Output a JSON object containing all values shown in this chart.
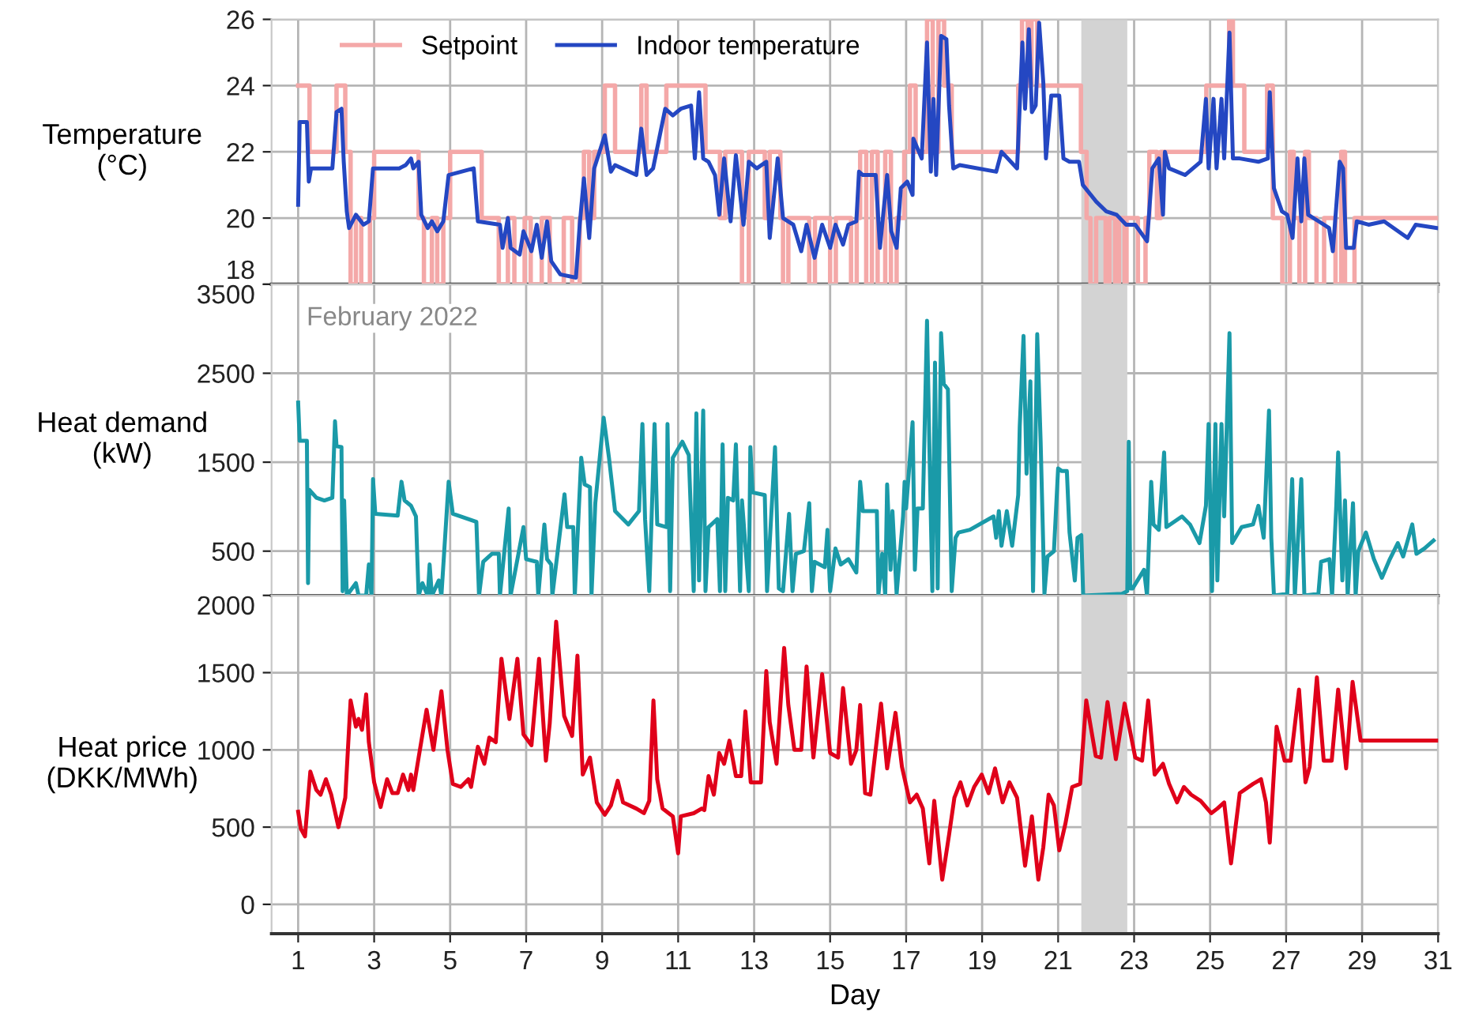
{
  "chart_data": [
    {
      "type": "line",
      "ylabel": "Temperature\n(°C)",
      "xlim": [
        0.3,
        31
      ],
      "xticks": [
        1,
        3,
        5,
        7,
        9,
        11,
        13,
        15,
        17,
        19,
        21,
        23,
        25,
        27,
        29,
        31
      ],
      "ylim": [
        18,
        26
      ],
      "yticks": [
        18,
        20,
        22,
        24,
        26
      ],
      "grid": true,
      "legend": "top left",
      "tick_labels": "y",
      "bands": [
        {
          "axis": "x",
          "from": 21.61,
          "to": 22.82,
          "color": "#d3d3d3"
        }
      ],
      "series": [
        {
          "name": "Setpoint",
          "type": "step",
          "color": "#f4a8a8",
          "x": [
            1.0,
            1.3,
            2.01,
            2.24,
            2.38,
            2.52,
            2.66,
            2.89,
            3.0,
            4.17,
            4.31,
            4.52,
            4.66,
            4.82,
            5.0,
            5.83,
            6.28,
            6.52,
            6.69,
            6.96,
            7.12,
            7.41,
            7.62,
            7.99,
            8.21,
            8.41,
            8.52,
            8.66,
            8.79,
            9.07,
            9.34,
            10.03,
            10.17,
            10.69,
            11.72,
            12.1,
            12.24,
            12.68,
            12.86,
            13.28,
            13.41,
            13.69,
            13.76,
            13.9,
            14.45,
            14.6,
            15.0,
            15.15,
            15.55,
            15.7,
            15.79,
            15.95,
            16.1,
            16.25,
            16.45,
            16.6,
            16.75,
            16.95,
            17.1,
            17.25,
            17.55,
            17.7,
            17.85,
            18.0,
            18.2,
            19.95,
            20.05,
            20.2,
            20.3,
            20.45,
            21.6,
            21.75,
            21.85,
            22.0,
            22.25,
            22.35,
            22.5,
            22.6,
            22.75,
            22.8,
            23.1,
            23.3,
            23.4,
            23.6,
            23.7,
            24.9,
            25.5,
            25.6,
            25.9,
            26.5,
            26.65,
            26.9,
            27.1,
            27.2,
            27.35,
            27.5,
            27.6,
            27.8,
            28.0,
            28.3,
            28.45,
            28.55,
            28.8,
            31.0
          ],
          "values": [
            24,
            22,
            24,
            22,
            18,
            20,
            18,
            20,
            22,
            20,
            18,
            20,
            18,
            20,
            22,
            20,
            18,
            20,
            18,
            20,
            18,
            20,
            18,
            20,
            18,
            20,
            22,
            20,
            22,
            24,
            22,
            24,
            22,
            24,
            22,
            20,
            22,
            18,
            22,
            20,
            22,
            20,
            18,
            20,
            18,
            20,
            18,
            20,
            18,
            20,
            22,
            18,
            22,
            18,
            22,
            18,
            20,
            22,
            24,
            22,
            26,
            22,
            26,
            24,
            22,
            24,
            26,
            24,
            26,
            24,
            22,
            20,
            18,
            20,
            18,
            20,
            18,
            20,
            18,
            20,
            18,
            20,
            22,
            20,
            22,
            24,
            26,
            24,
            22,
            24,
            20,
            18,
            22,
            20,
            18,
            22,
            20,
            18,
            20,
            18,
            22,
            18,
            20,
            20
          ]
        },
        {
          "name": "Indoor temperature",
          "type": "line",
          "color": "#2447c2",
          "x": [
            1.0,
            1.04,
            1.23,
            1.28,
            1.34,
            1.9,
            2.01,
            2.14,
            2.2,
            2.28,
            2.34,
            2.52,
            2.72,
            2.86,
            2.97,
            3.66,
            3.83,
            3.97,
            4.03,
            4.17,
            4.24,
            4.41,
            4.52,
            4.66,
            4.82,
            4.96,
            5.62,
            5.73,
            6.31,
            6.38,
            6.52,
            6.59,
            6.83,
            6.93,
            7.14,
            7.28,
            7.41,
            7.55,
            7.66,
            7.9,
            8.31,
            8.41,
            8.52,
            8.66,
            8.79,
            9.07,
            9.23,
            9.34,
            9.9,
            10.03,
            10.17,
            10.34,
            10.66,
            10.86,
            11.07,
            11.34,
            11.44,
            11.55,
            11.66,
            11.8,
            11.97,
            12.08,
            12.21,
            12.38,
            12.52,
            12.72,
            12.86,
            13.07,
            13.32,
            13.41,
            13.62,
            13.76,
            14.03,
            14.24,
            14.38,
            14.59,
            14.79,
            15.0,
            15.14,
            15.34,
            15.48,
            15.69,
            15.76,
            15.86,
            16.2,
            16.31,
            16.5,
            16.61,
            16.75,
            16.86,
            17.03,
            17.17,
            17.19,
            17.41,
            17.55,
            17.65,
            17.72,
            17.79,
            17.92,
            18.06,
            18.13,
            18.24,
            18.41,
            19.37,
            19.51,
            19.92,
            20.06,
            20.13,
            20.23,
            20.31,
            20.41,
            20.5,
            20.61,
            20.68,
            20.82,
            21.03,
            21.14,
            21.3,
            21.55,
            21.65,
            22.0,
            22.27,
            22.54,
            22.79,
            23.03,
            23.34,
            23.48,
            23.65,
            23.76,
            23.81,
            23.92,
            24.34,
            24.75,
            24.89,
            24.96,
            25.09,
            25.17,
            25.3,
            25.37,
            25.51,
            25.6,
            25.78,
            26.27,
            26.52,
            26.57,
            26.68,
            26.89,
            27.03,
            27.17,
            27.3,
            27.4,
            27.48,
            27.58,
            27.86,
            28.13,
            28.23,
            28.41,
            28.5,
            28.58,
            28.78,
            28.86,
            29.17,
            29.58,
            30.2,
            30.41,
            30.96
          ],
          "values": [
            20.4,
            22.9,
            22.9,
            21.1,
            21.5,
            21.5,
            23.2,
            23.3,
            21.7,
            20.2,
            19.7,
            20.1,
            19.8,
            19.9,
            21.5,
            21.5,
            21.6,
            21.8,
            21.5,
            21.7,
            20.1,
            19.7,
            19.9,
            19.6,
            19.9,
            21.3,
            21.5,
            19.9,
            19.8,
            19.1,
            20.0,
            19.1,
            18.9,
            19.6,
            19.0,
            19.8,
            18.8,
            19.9,
            18.7,
            18.3,
            18.2,
            19.8,
            21.2,
            19.4,
            21.5,
            22.5,
            21.4,
            21.6,
            21.3,
            22.7,
            21.3,
            21.5,
            23.3,
            23.1,
            23.3,
            23.4,
            21.8,
            23.8,
            21.8,
            21.7,
            21.3,
            20.1,
            21.8,
            19.9,
            21.9,
            19.8,
            21.7,
            21.5,
            21.7,
            19.4,
            21.8,
            20.0,
            19.8,
            19.0,
            19.8,
            18.8,
            19.8,
            19.1,
            19.8,
            19.2,
            19.8,
            19.9,
            21.4,
            21.3,
            21.3,
            19.1,
            21.3,
            19.6,
            19.1,
            20.9,
            21.1,
            20.7,
            22.4,
            21.8,
            25.3,
            21.4,
            23.6,
            21.3,
            25.5,
            25.4,
            23.4,
            21.5,
            21.6,
            21.4,
            22.0,
            21.5,
            25.3,
            23.3,
            25.7,
            23.2,
            23.4,
            25.9,
            24.1,
            21.8,
            23.7,
            23.7,
            21.8,
            21.7,
            21.7,
            21.0,
            20.5,
            20.2,
            20.1,
            19.8,
            19.8,
            19.3,
            21.5,
            21.8,
            20.1,
            22.0,
            21.5,
            21.3,
            21.7,
            23.6,
            21.5,
            23.6,
            21.5,
            23.6,
            21.8,
            25.6,
            21.8,
            21.8,
            21.7,
            21.8,
            23.8,
            20.9,
            20.2,
            20.1,
            19.4,
            21.8,
            19.9,
            21.8,
            20.1,
            19.9,
            19.7,
            19.0,
            21.7,
            21.5,
            19.1,
            19.1,
            19.9,
            19.8,
            19.9,
            19.4,
            19.8,
            19.7
          ]
        }
      ]
    },
    {
      "type": "line",
      "ylabel": "Heat demand\n(kW)",
      "annotations": [
        "February 2022"
      ],
      "xlim": [
        0.3,
        31
      ],
      "xticks": [
        1,
        3,
        5,
        7,
        9,
        11,
        13,
        15,
        17,
        19,
        21,
        23,
        25,
        27,
        29,
        31
      ],
      "ylim": [
        0,
        3500
      ],
      "yticks": [
        500,
        1500,
        2500,
        3500
      ],
      "grid": true,
      "tick_labels": "y",
      "bands": [
        {
          "axis": "x",
          "from": 21.61,
          "to": 22.82,
          "color": "#d3d3d3"
        }
      ],
      "series": [
        {
          "color": "#1a9aa8",
          "x": [
            1.0,
            1.04,
            1.23,
            1.26,
            1.29,
            1.48,
            1.69,
            1.9,
            1.97,
            2.01,
            2.14,
            2.17,
            2.21,
            2.28,
            2.52,
            2.59,
            2.79,
            2.86,
            2.93,
            2.97,
            3.03,
            3.62,
            3.72,
            3.8,
            3.97,
            4.1,
            4.17,
            4.27,
            4.41,
            4.46,
            4.52,
            4.7,
            4.77,
            4.96,
            5.07,
            5.69,
            5.76,
            5.87,
            6.1,
            6.28,
            6.31,
            6.54,
            6.59,
            6.93,
            7.0,
            7.28,
            7.32,
            7.48,
            7.55,
            7.66,
            7.69,
            8.01,
            8.08,
            8.24,
            8.28,
            8.45,
            8.54,
            8.68,
            8.72,
            8.82,
            9.04,
            9.18,
            9.34,
            9.69,
            9.97,
            10.06,
            10.13,
            10.24,
            10.38,
            10.45,
            10.7,
            10.72,
            10.79,
            10.86,
            11.11,
            11.28,
            11.41,
            11.48,
            11.55,
            11.66,
            11.72,
            11.8,
            12.03,
            12.1,
            12.17,
            12.24,
            12.31,
            12.45,
            12.52,
            12.63,
            12.68,
            12.86,
            12.9,
            12.96,
            13.28,
            13.34,
            13.55,
            13.65,
            13.76,
            13.92,
            14.01,
            14.1,
            14.31,
            14.45,
            14.52,
            14.59,
            14.86,
            14.93,
            15.0,
            15.14,
            15.28,
            15.48,
            15.69,
            15.79,
            15.86,
            16.23,
            16.27,
            16.37,
            16.45,
            16.5,
            16.59,
            16.64,
            16.75,
            16.92,
            16.96,
            17.0,
            17.17,
            17.23,
            17.3,
            17.44,
            17.55,
            17.61,
            17.69,
            17.76,
            17.83,
            17.92,
            17.99,
            18.1,
            18.2,
            18.3,
            18.38,
            18.68,
            19.3,
            19.37,
            19.44,
            19.51,
            19.65,
            19.79,
            19.95,
            19.99,
            20.09,
            20.17,
            20.27,
            20.34,
            20.45,
            20.54,
            20.64,
            20.72,
            20.89,
            21.0,
            21.1,
            21.23,
            21.3,
            21.44,
            21.51,
            21.61,
            21.66,
            22.68,
            22.82,
            22.86,
            22.9,
            22.96,
            23.26,
            23.34,
            23.45,
            23.51,
            23.65,
            23.79,
            23.85,
            24.26,
            24.47,
            24.72,
            24.89,
            24.96,
            25.05,
            25.14,
            25.19,
            25.3,
            25.37,
            25.44,
            25.51,
            25.58,
            25.83,
            26.13,
            26.27,
            26.41,
            26.55,
            26.61,
            26.68,
            27.03,
            27.16,
            27.23,
            27.4,
            27.48,
            27.85,
            27.92,
            28.14,
            28.21,
            28.32,
            28.37,
            28.48,
            28.55,
            28.62,
            28.76,
            28.83,
            28.9,
            29.1,
            29.31,
            29.52,
            29.73,
            29.94,
            30.08,
            30.32,
            30.43,
            30.64,
            30.88
          ],
          "values": [
            2170,
            1740,
            1740,
            140,
            1190,
            1100,
            1070,
            1100,
            1960,
            1680,
            1670,
            50,
            1070,
            0,
            140,
            0,
            0,
            350,
            0,
            1310,
            920,
            900,
            1280,
            1070,
            1010,
            890,
            0,
            140,
            0,
            350,
            0,
            170,
            0,
            1280,
            920,
            830,
            0,
            380,
            470,
            470,
            0,
            980,
            0,
            770,
            410,
            380,
            0,
            800,
            410,
            350,
            0,
            1140,
            770,
            770,
            0,
            1550,
            1250,
            1220,
            0,
            1040,
            2000,
            1550,
            950,
            800,
            950,
            1930,
            860,
            50,
            1930,
            800,
            770,
            1930,
            50,
            1550,
            1730,
            1580,
            50,
            2050,
            170,
            2080,
            50,
            770,
            860,
            50,
            1700,
            50,
            1100,
            1070,
            1700,
            50,
            1070,
            50,
            1670,
            1160,
            1130,
            50,
            1670,
            80,
            50,
            920,
            50,
            470,
            500,
            1040,
            50,
            380,
            320,
            740,
            50,
            530,
            350,
            410,
            260,
            1280,
            950,
            950,
            0,
            470,
            0,
            1250,
            290,
            950,
            20,
            890,
            1280,
            980,
            1950,
            290,
            980,
            980,
            3090,
            1730,
            50,
            2620,
            80,
            2950,
            2380,
            2320,
            50,
            650,
            710,
            740,
            890,
            650,
            950,
            560,
            950,
            560,
            1130,
            1900,
            2920,
            1370,
            2410,
            50,
            2940,
            1730,
            20,
            440,
            500,
            1430,
            1400,
            1400,
            710,
            170,
            650,
            680,
            0,
            20,
            50,
            1730,
            80,
            80,
            290,
            0,
            1280,
            800,
            740,
            1610,
            770,
            890,
            800,
            590,
            1010,
            1930,
            50,
            1930,
            170,
            1930,
            890,
            1930,
            2950,
            590,
            770,
            800,
            1010,
            650,
            2080,
            650,
            0,
            20,
            1310,
            0,
            1310,
            0,
            20,
            380,
            410,
            0,
            1010,
            1610,
            170,
            1070,
            0,
            1040,
            0,
            500,
            710,
            410,
            200,
            410,
            590,
            440,
            800,
            470,
            530,
            620
          ]
        }
      ]
    },
    {
      "type": "line",
      "ylabel": "Heat price\n(DKK/MWh)",
      "xlabel": "Day",
      "xlim": [
        0.3,
        31
      ],
      "xticks": [
        1,
        3,
        5,
        7,
        9,
        11,
        13,
        15,
        17,
        19,
        21,
        23,
        25,
        27,
        29,
        31
      ],
      "ylim": [
        -190,
        2000
      ],
      "yticks": [
        0,
        500,
        1000,
        1500,
        2000
      ],
      "grid": true,
      "bands": [
        {
          "axis": "x",
          "from": 21.61,
          "to": 22.82,
          "color": "#d3d3d3"
        }
      ],
      "series": [
        {
          "color": "#e0001a",
          "x": [
            1.0,
            1.07,
            1.18,
            1.32,
            1.48,
            1.59,
            1.73,
            1.87,
            2.06,
            2.24,
            2.38,
            2.52,
            2.59,
            2.68,
            2.79,
            2.86,
            3.0,
            3.17,
            3.34,
            3.48,
            3.62,
            3.76,
            3.9,
            3.97,
            4.03,
            4.17,
            4.38,
            4.56,
            4.77,
            4.93,
            5.07,
            5.28,
            5.48,
            5.55,
            5.73,
            5.9,
            6.03,
            6.2,
            6.35,
            6.56,
            6.77,
            6.93,
            7.14,
            7.34,
            7.52,
            7.62,
            7.79,
            8.0,
            8.21,
            8.35,
            8.49,
            8.68,
            8.86,
            9.07,
            9.23,
            9.41,
            9.55,
            9.9,
            10.1,
            10.24,
            10.35,
            10.45,
            10.59,
            10.86,
            11.0,
            11.07,
            11.41,
            11.62,
            11.69,
            11.8,
            11.94,
            12.08,
            12.21,
            12.35,
            12.52,
            12.66,
            12.77,
            12.91,
            13.18,
            13.32,
            13.41,
            13.59,
            13.79,
            13.9,
            14.06,
            14.24,
            14.38,
            14.56,
            14.79,
            15.0,
            15.21,
            15.34,
            15.55,
            15.69,
            15.79,
            15.92,
            16.06,
            16.34,
            16.5,
            16.72,
            16.89,
            17.1,
            17.28,
            17.44,
            17.61,
            17.74,
            17.95,
            18.13,
            18.27,
            18.43,
            18.61,
            18.79,
            18.99,
            19.17,
            19.34,
            19.54,
            19.72,
            19.92,
            20.13,
            20.31,
            20.48,
            20.61,
            20.75,
            20.89,
            21.03,
            21.19,
            21.37,
            21.58,
            21.74,
            21.99,
            22.13,
            22.3,
            22.52,
            22.75,
            23.03,
            23.21,
            23.37,
            23.54,
            23.76,
            23.92,
            24.13,
            24.31,
            24.5,
            24.75,
            25.03,
            25.19,
            25.37,
            25.55,
            25.78,
            26.13,
            26.34,
            26.47,
            26.57,
            26.75,
            26.96,
            27.12,
            27.34,
            27.51,
            27.62,
            27.81,
            27.99,
            28.2,
            28.37,
            28.58,
            28.75,
            28.96,
            31.0
          ],
          "values": [
            600,
            490,
            440,
            860,
            740,
            710,
            810,
            710,
            500,
            690,
            1320,
            1150,
            1200,
            1130,
            1360,
            1050,
            790,
            630,
            810,
            720,
            720,
            840,
            740,
            840,
            740,
            950,
            1260,
            1000,
            1380,
            1000,
            780,
            760,
            810,
            760,
            1020,
            910,
            1080,
            1050,
            1590,
            1200,
            1590,
            1100,
            1030,
            1590,
            930,
            1170,
            1830,
            1220,
            1090,
            1610,
            840,
            950,
            660,
            580,
            640,
            800,
            660,
            620,
            590,
            670,
            1320,
            810,
            620,
            570,
            330,
            570,
            590,
            620,
            610,
            830,
            710,
            980,
            910,
            1060,
            830,
            830,
            1250,
            790,
            790,
            1510,
            1180,
            910,
            1660,
            1290,
            1000,
            1000,
            1540,
            950,
            1490,
            980,
            950,
            1400,
            910,
            1000,
            1290,
            720,
            710,
            1300,
            880,
            1240,
            890,
            660,
            710,
            620,
            265,
            670,
            160,
            450,
            690,
            790,
            640,
            760,
            840,
            720,
            880,
            660,
            790,
            690,
            250,
            570,
            160,
            370,
            710,
            640,
            350,
            520,
            760,
            780,
            1320,
            960,
            950,
            1310,
            940,
            1300,
            950,
            930,
            1320,
            840,
            910,
            780,
            660,
            760,
            710,
            670,
            590,
            620,
            660,
            265,
            720,
            780,
            810,
            660,
            400,
            1150,
            930,
            930,
            1390,
            790,
            890,
            1470,
            930,
            930,
            1390,
            880,
            1440,
            1060,
            1060
          ]
        }
      ]
    }
  ]
}
